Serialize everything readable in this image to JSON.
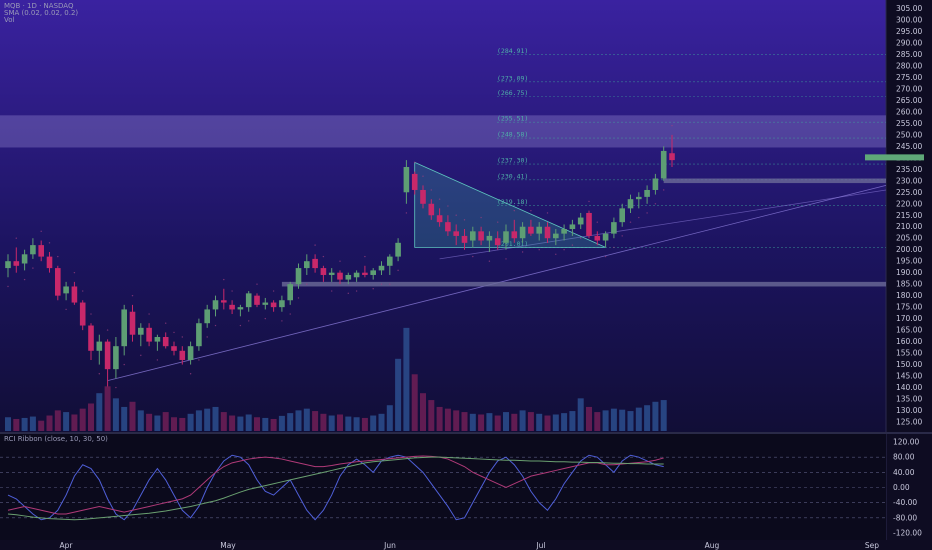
{
  "legend": {
    "symbol_line": "MQB · 1D · NASDAQ",
    "sma_line": "SMA (0.02, 0.02, 0.2)",
    "vol_line": "Vol",
    "rsi_line": "RCI Ribbon (close, 10, 30, 50)"
  },
  "colors": {
    "bull": "#5e9e74",
    "bear": "#c8286a",
    "volume_bull": "#2a4a8a",
    "volume_bear": "#6a1e55",
    "fib": "#3ea89c",
    "resistance_zone": "#9a8fd8",
    "level_band": "#6c6c98",
    "last_price": "#5fa878"
  },
  "price_axis": {
    "ticks": [
      "305.00",
      "300.00",
      "295.00",
      "290.00",
      "285.00",
      "280.00",
      "275.00",
      "270.00",
      "265.00",
      "260.00",
      "255.00",
      "250.00",
      "245.00",
      "240.00",
      "235.00",
      "230.00",
      "225.00",
      "220.00",
      "215.00",
      "210.00",
      "205.00",
      "200.00",
      "195.00",
      "190.00",
      "185.00",
      "180.00",
      "175.00",
      "170.00",
      "165.00",
      "160.00",
      "155.00",
      "150.00",
      "145.00",
      "140.00",
      "135.00",
      "130.00",
      "125.00"
    ]
  },
  "rci_axis": {
    "ticks": [
      "120.00",
      "80.00",
      "40.00",
      "0.00",
      "-40.00",
      "-80.00",
      "-120.00"
    ]
  },
  "time_axis": {
    "labels": [
      "Apr",
      "May",
      "Jun",
      "Jul",
      "Aug",
      "Sep"
    ]
  },
  "fib_levels": [
    {
      "label": "(284.91)",
      "price": 284.91
    },
    {
      "label": "(273.09)",
      "price": 273.09
    },
    {
      "label": "(266.75)",
      "price": 266.75
    },
    {
      "label": "(255.51)",
      "price": 255.51
    },
    {
      "label": "(248.58)",
      "price": 248.58
    },
    {
      "label": "(237.30)",
      "price": 237.3
    },
    {
      "label": "(230.41)",
      "price": 230.41
    },
    {
      "label": "(219.18)",
      "price": 219.18
    },
    {
      "label": "(201.01)",
      "price": 201.01
    }
  ],
  "chart_data": {
    "type": "candlestick",
    "candles": [
      {
        "o": 192,
        "h": 198,
        "l": 188,
        "c": 195
      },
      {
        "o": 195,
        "h": 201,
        "l": 190,
        "c": 193
      },
      {
        "o": 194,
        "h": 200,
        "l": 191,
        "c": 198
      },
      {
        "o": 198,
        "h": 205,
        "l": 196,
        "c": 202
      },
      {
        "o": 202,
        "h": 204,
        "l": 195,
        "c": 197
      },
      {
        "o": 197,
        "h": 199,
        "l": 190,
        "c": 192
      },
      {
        "o": 192,
        "h": 193,
        "l": 178,
        "c": 180
      },
      {
        "o": 181,
        "h": 186,
        "l": 178,
        "c": 184
      },
      {
        "o": 184,
        "h": 186,
        "l": 176,
        "c": 177
      },
      {
        "o": 177,
        "h": 178,
        "l": 165,
        "c": 167
      },
      {
        "o": 167,
        "h": 168,
        "l": 152,
        "c": 156
      },
      {
        "o": 156,
        "h": 163,
        "l": 150,
        "c": 160
      },
      {
        "o": 160,
        "h": 161,
        "l": 140,
        "c": 148
      },
      {
        "o": 148,
        "h": 162,
        "l": 144,
        "c": 158
      },
      {
        "o": 158,
        "h": 176,
        "l": 154,
        "c": 174
      },
      {
        "o": 173,
        "h": 176,
        "l": 160,
        "c": 163
      },
      {
        "o": 163,
        "h": 168,
        "l": 158,
        "c": 166
      },
      {
        "o": 166,
        "h": 168,
        "l": 158,
        "c": 160
      },
      {
        "o": 160,
        "h": 163,
        "l": 156,
        "c": 162
      },
      {
        "o": 162,
        "h": 164,
        "l": 157,
        "c": 158
      },
      {
        "o": 158,
        "h": 160,
        "l": 154,
        "c": 156
      },
      {
        "o": 156,
        "h": 158,
        "l": 150,
        "c": 152
      },
      {
        "o": 152,
        "h": 160,
        "l": 150,
        "c": 158
      },
      {
        "o": 158,
        "h": 170,
        "l": 156,
        "c": 168
      },
      {
        "o": 168,
        "h": 176,
        "l": 166,
        "c": 174
      },
      {
        "o": 174,
        "h": 180,
        "l": 171,
        "c": 178
      },
      {
        "o": 178,
        "h": 183,
        "l": 174,
        "c": 177
      },
      {
        "o": 176,
        "h": 178,
        "l": 172,
        "c": 174
      },
      {
        "o": 174,
        "h": 176,
        "l": 171,
        "c": 175
      },
      {
        "o": 175,
        "h": 182,
        "l": 173,
        "c": 181
      },
      {
        "o": 180,
        "h": 181,
        "l": 175,
        "c": 176
      },
      {
        "o": 176,
        "h": 179,
        "l": 174,
        "c": 177
      },
      {
        "o": 177,
        "h": 178,
        "l": 173,
        "c": 175
      },
      {
        "o": 175,
        "h": 180,
        "l": 173,
        "c": 178
      },
      {
        "o": 178,
        "h": 186,
        "l": 176,
        "c": 185
      },
      {
        "o": 185,
        "h": 194,
        "l": 183,
        "c": 192
      },
      {
        "o": 192,
        "h": 198,
        "l": 189,
        "c": 195
      },
      {
        "o": 196,
        "h": 198,
        "l": 190,
        "c": 192
      },
      {
        "o": 192,
        "h": 193,
        "l": 186,
        "c": 189
      },
      {
        "o": 189,
        "h": 192,
        "l": 186,
        "c": 190
      },
      {
        "o": 190,
        "h": 191,
        "l": 185,
        "c": 187
      },
      {
        "o": 187,
        "h": 190,
        "l": 185,
        "c": 189
      },
      {
        "o": 188,
        "h": 191,
        "l": 186,
        "c": 190
      },
      {
        "o": 190,
        "h": 193,
        "l": 188,
        "c": 189
      },
      {
        "o": 189,
        "h": 192,
        "l": 187,
        "c": 191
      },
      {
        "o": 191,
        "h": 195,
        "l": 189,
        "c": 193
      },
      {
        "o": 193,
        "h": 198,
        "l": 189,
        "c": 197
      },
      {
        "o": 197,
        "h": 205,
        "l": 195,
        "c": 203
      },
      {
        "o": 225,
        "h": 239,
        "l": 220,
        "c": 236
      },
      {
        "o": 233,
        "h": 234,
        "l": 224,
        "c": 226
      },
      {
        "o": 226,
        "h": 228,
        "l": 218,
        "c": 220
      },
      {
        "o": 220,
        "h": 222,
        "l": 213,
        "c": 215
      },
      {
        "o": 215,
        "h": 218,
        "l": 210,
        "c": 212
      },
      {
        "o": 212,
        "h": 215,
        "l": 206,
        "c": 208
      },
      {
        "o": 208,
        "h": 211,
        "l": 202,
        "c": 206
      },
      {
        "o": 206,
        "h": 209,
        "l": 200,
        "c": 203
      },
      {
        "o": 204,
        "h": 210,
        "l": 201,
        "c": 208
      },
      {
        "o": 208,
        "h": 210,
        "l": 202,
        "c": 204
      },
      {
        "o": 204,
        "h": 208,
        "l": 199,
        "c": 206
      },
      {
        "o": 205,
        "h": 208,
        "l": 200,
        "c": 202
      },
      {
        "o": 203,
        "h": 211,
        "l": 200,
        "c": 208
      },
      {
        "o": 208,
        "h": 213,
        "l": 203,
        "c": 205
      },
      {
        "o": 205,
        "h": 212,
        "l": 203,
        "c": 210
      },
      {
        "o": 210,
        "h": 213,
        "l": 206,
        "c": 207
      },
      {
        "o": 207,
        "h": 212,
        "l": 204,
        "c": 210
      },
      {
        "o": 210,
        "h": 212,
        "l": 203,
        "c": 205
      },
      {
        "o": 205,
        "h": 209,
        "l": 202,
        "c": 207
      },
      {
        "o": 207,
        "h": 211,
        "l": 204,
        "c": 209
      },
      {
        "o": 209,
        "h": 213,
        "l": 206,
        "c": 211
      },
      {
        "o": 211,
        "h": 216,
        "l": 209,
        "c": 214
      },
      {
        "o": 216,
        "h": 217,
        "l": 205,
        "c": 206
      },
      {
        "o": 206,
        "h": 208,
        "l": 202,
        "c": 204
      },
      {
        "o": 204,
        "h": 208,
        "l": 201,
        "c": 207
      },
      {
        "o": 207,
        "h": 214,
        "l": 205,
        "c": 212
      },
      {
        "o": 212,
        "h": 220,
        "l": 210,
        "c": 218
      },
      {
        "o": 218,
        "h": 224,
        "l": 216,
        "c": 222
      },
      {
        "o": 222,
        "h": 225,
        "l": 218,
        "c": 223
      },
      {
        "o": 223,
        "h": 228,
        "l": 220,
        "c": 226
      },
      {
        "o": 226,
        "h": 233,
        "l": 224,
        "c": 231
      },
      {
        "o": 231,
        "h": 245,
        "l": 230,
        "c": 243
      },
      {
        "o": 242,
        "h": 250,
        "l": 236,
        "c": 239
      }
    ],
    "volume": [
      40,
      35,
      38,
      42,
      30,
      45,
      60,
      55,
      48,
      65,
      80,
      110,
      130,
      95,
      70,
      85,
      60,
      50,
      45,
      55,
      40,
      38,
      50,
      60,
      65,
      70,
      55,
      45,
      42,
      48,
      40,
      38,
      35,
      44,
      52,
      60,
      65,
      58,
      50,
      45,
      48,
      42,
      40,
      38,
      45,
      50,
      75,
      210,
      300,
      165,
      110,
      90,
      70,
      65,
      60,
      55,
      50,
      48,
      52,
      45,
      55,
      50,
      60,
      55,
      50,
      45,
      48,
      52,
      58,
      95,
      70,
      55,
      60,
      65,
      62,
      58,
      68,
      75,
      85,
      90
    ],
    "rci_series": [
      {
        "name": "fast",
        "color": "#4f5fd8",
        "values": [
          -20,
          -30,
          -50,
          -70,
          -85,
          -80,
          -60,
          -20,
          30,
          60,
          50,
          20,
          -30,
          -70,
          -85,
          -60,
          -20,
          20,
          50,
          20,
          -20,
          -60,
          -80,
          -50,
          0,
          40,
          70,
          85,
          80,
          60,
          20,
          -10,
          -20,
          0,
          20,
          -20,
          -60,
          -85,
          -60,
          -20,
          30,
          60,
          75,
          60,
          40,
          70,
          80,
          85,
          80,
          60,
          40,
          10,
          -20,
          -50,
          -85,
          -80,
          -40,
          0,
          40,
          70,
          80,
          60,
          30,
          -10,
          -40,
          -60,
          -30,
          10,
          40,
          70,
          85,
          80,
          60,
          40,
          70,
          85,
          80,
          70,
          60,
          55
        ]
      },
      {
        "name": "mid",
        "color": "#b03a78",
        "values": [
          -60,
          -55,
          -50,
          -55,
          -60,
          -65,
          -70,
          -70,
          -65,
          -60,
          -55,
          -50,
          -55,
          -60,
          -65,
          -60,
          -55,
          -50,
          -45,
          -40,
          -35,
          -30,
          -20,
          0,
          20,
          40,
          55,
          65,
          70,
          75,
          78,
          80,
          78,
          75,
          70,
          65,
          60,
          55,
          55,
          58,
          62,
          65,
          68,
          70,
          72,
          74,
          76,
          78,
          80,
          82,
          83,
          82,
          80,
          75,
          65,
          55,
          40,
          30,
          20,
          10,
          0,
          10,
          20,
          30,
          35,
          40,
          45,
          50,
          55,
          60,
          65,
          65,
          60,
          60,
          62,
          64,
          66,
          68,
          72,
          78
        ]
      },
      {
        "name": "slow",
        "color": "#6aa070",
        "values": [
          -70,
          -72,
          -75,
          -78,
          -80,
          -82,
          -83,
          -84,
          -85,
          -84,
          -82,
          -80,
          -78,
          -76,
          -74,
          -72,
          -70,
          -68,
          -65,
          -62,
          -58,
          -54,
          -50,
          -45,
          -40,
          -35,
          -28,
          -20,
          -12,
          -5,
          0,
          5,
          10,
          15,
          20,
          25,
          30,
          35,
          40,
          45,
          50,
          55,
          60,
          65,
          68,
          70,
          72,
          74,
          76,
          78,
          79,
          80,
          80,
          79,
          78,
          77,
          76,
          75,
          74,
          73,
          72,
          72,
          71,
          70,
          70,
          69,
          68,
          68,
          67,
          67,
          66,
          66,
          65,
          64,
          64,
          63,
          63,
          62,
          62,
          62
        ]
      }
    ]
  }
}
